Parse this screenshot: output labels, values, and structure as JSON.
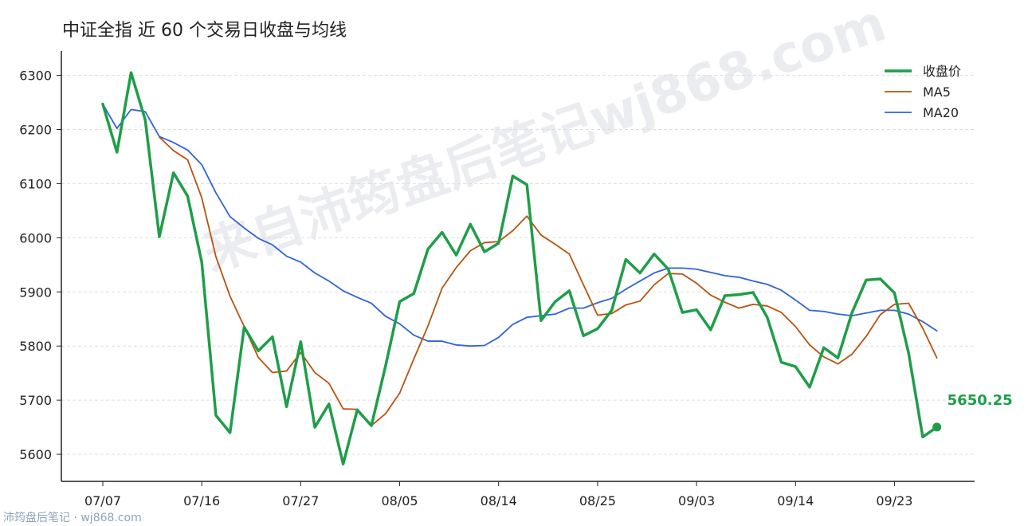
{
  "chart_data": {
    "type": "line",
    "title": "中证全指 近 60 个交易日收盘与均线",
    "xlabel": "",
    "ylabel": "",
    "ylim": [
      5550,
      6345
    ],
    "yticks": [
      5600,
      5700,
      5800,
      5900,
      6000,
      6100,
      6200,
      6300
    ],
    "grid": "horizontal dashed",
    "legend_position": "top-right",
    "x_tick_labels": [
      "07/07",
      "07/16",
      "07/27",
      "08/05",
      "08/14",
      "08/25",
      "09/03",
      "09/14",
      "09/23"
    ],
    "x_tick_indices": [
      0,
      7,
      14,
      21,
      28,
      35,
      42,
      49,
      56
    ],
    "series": [
      {
        "name": "收盘价",
        "color": "#1e9e48",
        "values": [
          6247,
          6158,
          6305,
          6218,
          6002,
          6120,
          6077,
          5955,
          5672,
          5640,
          5835,
          5791,
          5817,
          5688,
          5808,
          5650,
          5693,
          5582,
          5682,
          5653,
          5763,
          5882,
          5897,
          5979,
          6010,
          5968,
          6025,
          5974,
          5990,
          6114,
          6098,
          5847,
          5882,
          5902,
          5819,
          5832,
          5866,
          5960,
          5935,
          5970,
          5942,
          5862,
          5867,
          5830,
          5893,
          5895,
          5899,
          5853,
          5770,
          5762,
          5724,
          5797,
          5778,
          5862,
          5922,
          5924,
          5898,
          5787,
          5632,
          5650.25
        ]
      },
      {
        "name": "MA5",
        "color": "#b8530e",
        "values": [
          null,
          null,
          null,
          null,
          6186,
          6161,
          6144,
          6074,
          5965,
          5892,
          5836,
          5779,
          5751,
          5754,
          5788,
          5751,
          5731,
          5684,
          5683,
          5653,
          5675,
          5713,
          5776,
          5837,
          5907,
          5945,
          5976,
          5991,
          5993,
          6013,
          6040,
          6005,
          5988,
          5970,
          5913,
          5857,
          5860,
          5876,
          5883,
          5913,
          5934,
          5933,
          5916,
          5894,
          5881,
          5870,
          5877,
          5874,
          5862,
          5836,
          5802,
          5780,
          5767,
          5785,
          5818,
          5858,
          5877,
          5879,
          5833,
          5778
        ]
      },
      {
        "name": "MA20",
        "color": "#2f64d8",
        "values": [
          6247,
          6202,
          6237,
          6233,
          6187,
          6176,
          6162,
          6135,
          6083,
          6039,
          6018,
          5999,
          5987,
          5966,
          5955,
          5935,
          5920,
          5902,
          5890,
          5879,
          5855,
          5841,
          5820,
          5809,
          5809,
          5802,
          5800,
          5801,
          5816,
          5840,
          5853,
          5856,
          5859,
          5870,
          5870,
          5880,
          5888,
          5905,
          5920,
          5935,
          5944,
          5944,
          5942,
          5936,
          5930,
          5927,
          5920,
          5914,
          5903,
          5885,
          5866,
          5864,
          5859,
          5856,
          5861,
          5866,
          5866,
          5859,
          5845,
          5828
        ]
      }
    ],
    "last_value_label": "5650.25"
  },
  "watermark": "来自沛筠盘后笔记wj868.com",
  "footer": "沛筠盘后笔记 · wj868.com"
}
